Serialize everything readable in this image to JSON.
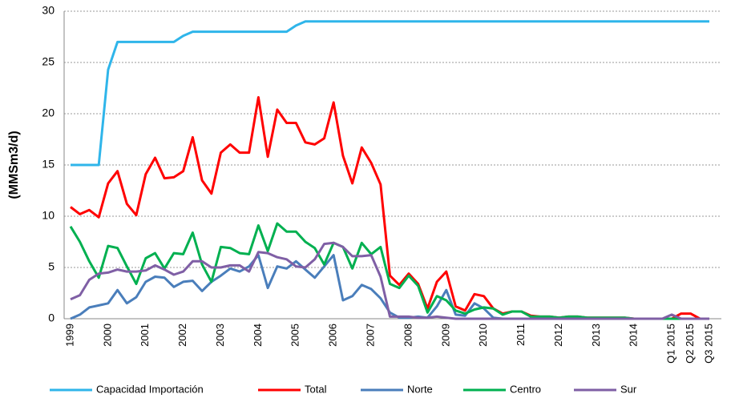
{
  "chart_data": {
    "type": "line",
    "y_label": "(MMSm3/d)",
    "categories": [
      "1999",
      null,
      null,
      null,
      "2000",
      null,
      null,
      null,
      "2001",
      null,
      null,
      null,
      "2002",
      null,
      null,
      null,
      "2003",
      null,
      null,
      null,
      "2004",
      null,
      null,
      null,
      "2005",
      null,
      null,
      null,
      "2006",
      null,
      null,
      null,
      "2007",
      null,
      null,
      null,
      "2008",
      null,
      null,
      null,
      "2009",
      null,
      null,
      null,
      "2010",
      null,
      null,
      null,
      "2011",
      null,
      null,
      null,
      "2012",
      null,
      null,
      null,
      "2013",
      null,
      null,
      null,
      "2014",
      null,
      null,
      null,
      "Q1 2015",
      null,
      "Q2 2015",
      null,
      "Q3 2015"
    ],
    "ylim": [
      0,
      30
    ],
    "yticks": [
      0,
      5,
      10,
      15,
      20,
      25,
      30
    ],
    "grid": true,
    "legend": "bottom",
    "series": [
      {
        "name": "Capacidad Importación",
        "color": "#2fb5ea",
        "values": [
          15,
          15,
          15,
          15,
          24.3,
          27,
          27,
          27,
          27,
          27,
          27,
          27,
          27.6,
          28,
          28,
          28,
          28,
          28,
          28,
          28,
          28,
          28,
          28,
          28,
          28.6,
          29,
          29,
          29,
          29,
          29,
          29,
          29,
          29,
          29,
          29,
          29,
          29,
          29,
          29,
          29,
          29,
          29,
          29,
          29,
          29,
          29,
          29,
          29,
          29,
          29,
          29,
          29,
          29,
          29,
          29,
          29,
          29,
          29,
          29,
          29,
          29,
          29,
          29,
          29,
          29,
          29,
          29,
          29,
          29
        ]
      },
      {
        "name": "Total",
        "color": "#ff0000",
        "values": [
          10.9,
          10.2,
          10.6,
          9.9,
          13.2,
          14.4,
          11.2,
          10.1,
          14.1,
          15.7,
          13.7,
          13.8,
          14.4,
          17.7,
          13.5,
          12.2,
          16.2,
          17.0,
          16.2,
          16.2,
          21.6,
          15.8,
          20.4,
          19.1,
          19.1,
          17.2,
          17.0,
          17.6,
          21.1,
          15.9,
          13.2,
          16.7,
          15.2,
          13.1,
          4.2,
          3.3,
          4.4,
          3.4,
          1.0,
          3.6,
          4.6,
          1.2,
          0.8,
          2.4,
          2.2,
          1.0,
          0.5,
          0.7,
          0.7,
          0.3,
          0.2,
          0.2,
          0.1,
          0.2,
          0.2,
          0.1,
          0.1,
          0.1,
          0.1,
          0.1,
          0,
          0,
          0,
          0,
          0,
          0.5,
          0.5,
          0,
          0
        ]
      },
      {
        "name": "Norte",
        "color": "#4a7ebb",
        "values": [
          0,
          0.4,
          1.1,
          1.3,
          1.5,
          2.8,
          1.5,
          2.1,
          3.6,
          4.1,
          4.0,
          3.1,
          3.6,
          3.7,
          2.7,
          3.6,
          4.2,
          4.9,
          4.6,
          5.1,
          6.2,
          3.0,
          5.1,
          4.9,
          5.6,
          4.8,
          4.0,
          5.1,
          6.2,
          1.8,
          2.2,
          3.3,
          2.9,
          2.0,
          0.6,
          0.1,
          0.1,
          0.2,
          0.1,
          1.2,
          2.8,
          0.4,
          0.3,
          1.5,
          1.0,
          0.1,
          0,
          0,
          0,
          0,
          0,
          0,
          0,
          0,
          0,
          0,
          0,
          0,
          0,
          0,
          0,
          0,
          0,
          0,
          0,
          0,
          0,
          0,
          0
        ]
      },
      {
        "name": "Centro",
        "color": "#00b050",
        "values": [
          9.0,
          7.5,
          5.6,
          4.0,
          7.1,
          6.9,
          5.1,
          3.4,
          5.9,
          6.4,
          4.9,
          6.4,
          6.3,
          8.4,
          5.3,
          3.6,
          7.0,
          6.9,
          6.4,
          6.3,
          9.1,
          6.6,
          9.3,
          8.5,
          8.5,
          7.5,
          6.9,
          5.3,
          7.4,
          7.0,
          4.9,
          7.4,
          6.3,
          7.0,
          3.4,
          3.0,
          4.2,
          3.2,
          0.6,
          2.2,
          1.8,
          0.8,
          0.5,
          0.9,
          1.1,
          1.0,
          0.4,
          0.7,
          0.7,
          0.2,
          0.2,
          0.2,
          0.1,
          0.2,
          0.2,
          0.1,
          0.1,
          0.1,
          0.1,
          0.1,
          0,
          0,
          0,
          0,
          0,
          0,
          0,
          0,
          0
        ]
      },
      {
        "name": "Sur",
        "color": "#7f5fa5",
        "values": [
          1.9,
          2.3,
          3.8,
          4.4,
          4.5,
          4.8,
          4.6,
          4.6,
          4.7,
          5.2,
          4.8,
          4.3,
          4.6,
          5.6,
          5.6,
          5.0,
          5.0,
          5.2,
          5.2,
          4.6,
          6.5,
          6.4,
          6.0,
          5.8,
          5.1,
          5.0,
          5.8,
          7.3,
          7.4,
          7.0,
          6.1,
          6.1,
          6.2,
          4.1,
          0.2,
          0.2,
          0.2,
          0.1,
          0.1,
          0.2,
          0.1,
          0,
          0,
          0,
          0,
          0,
          0,
          0,
          0,
          0,
          0,
          0,
          0,
          0,
          0,
          0,
          0,
          0,
          0,
          0,
          0,
          0,
          0,
          0,
          0.4,
          0,
          0,
          0,
          0
        ]
      }
    ]
  }
}
